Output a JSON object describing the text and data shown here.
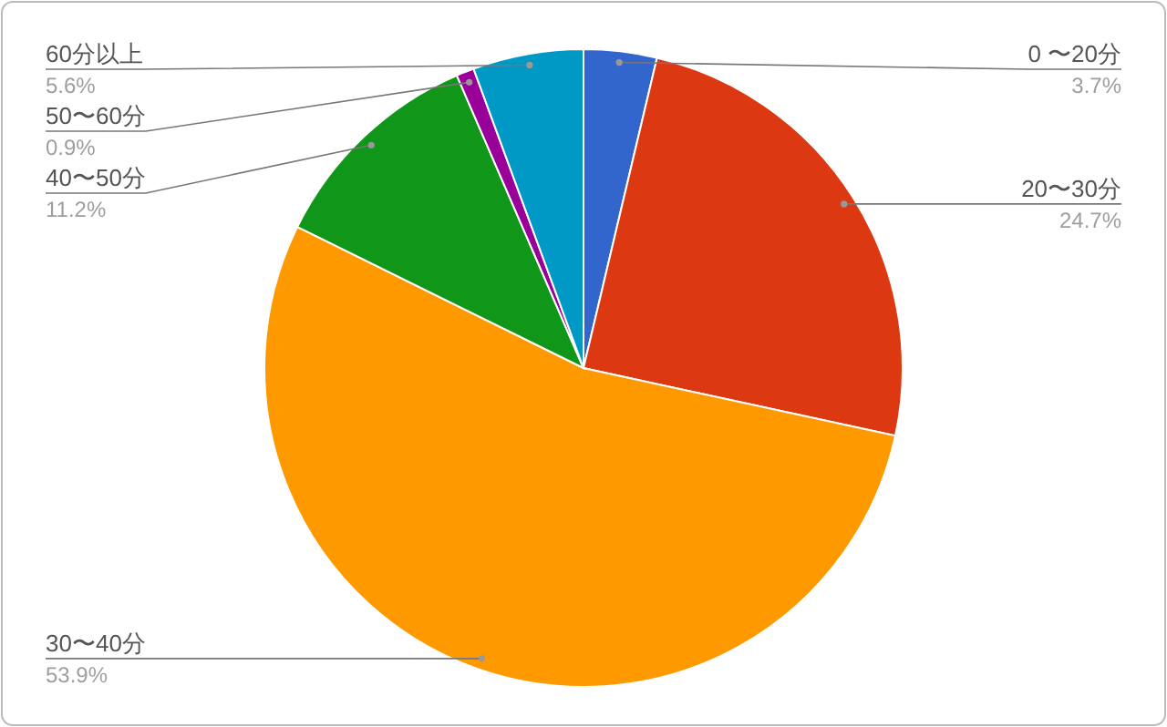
{
  "chart_data": {
    "type": "pie",
    "categories": [
      "0 〜20分",
      "20〜30分",
      "30〜40分",
      "40〜50分",
      "50〜60分",
      "60分以上"
    ],
    "values": [
      3.7,
      24.7,
      53.9,
      11.2,
      0.9,
      5.6
    ],
    "colors": [
      "#3366cc",
      "#dc3912",
      "#ff9900",
      "#109618",
      "#990099",
      "#0099c6"
    ],
    "value_labels": [
      "3.7%",
      "24.7%",
      "53.9%",
      "11.2%",
      "0.9%",
      "5.6%"
    ]
  }
}
